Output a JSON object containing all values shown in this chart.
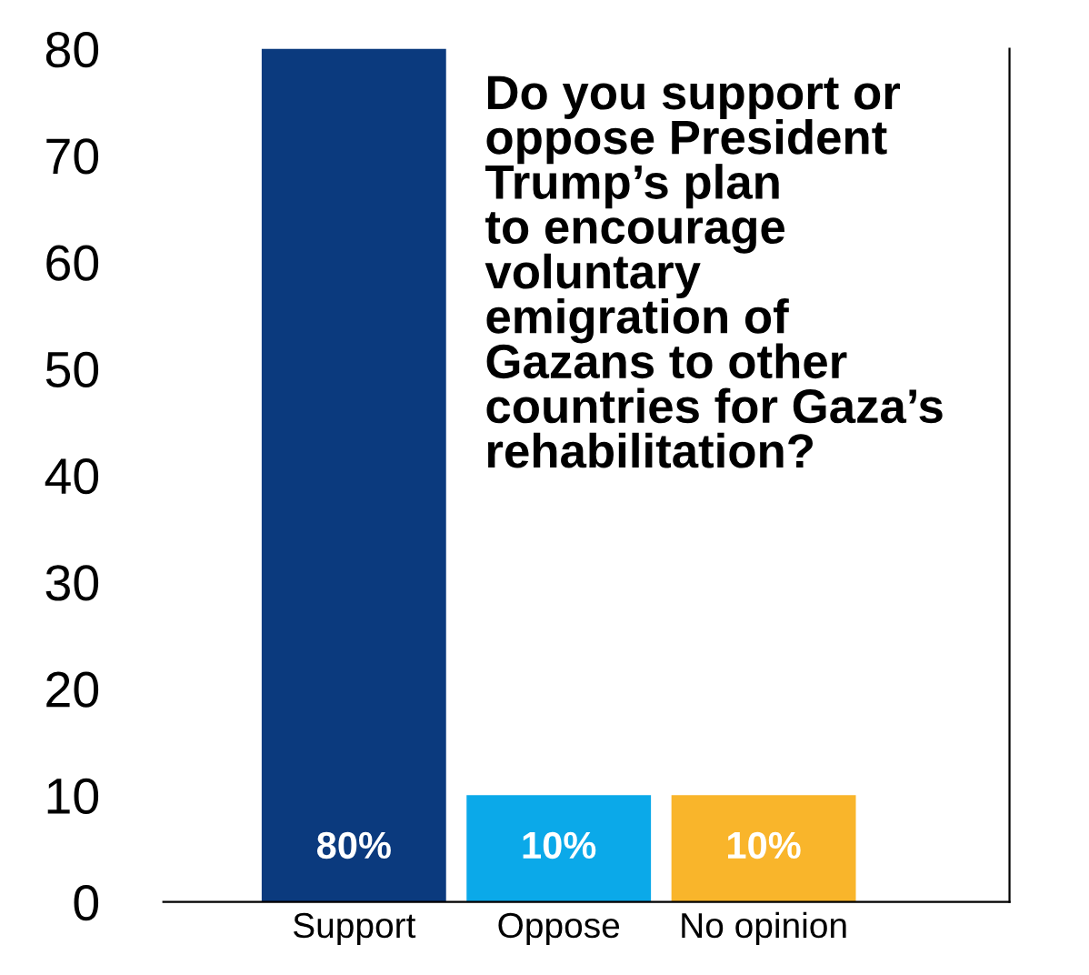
{
  "chart_data": {
    "type": "bar",
    "title": "Do you support or\noppose President\nTrump’s plan\nto encourage\nvoluntary\nemigration of\nGazans to other\ncountries for Gaza’s\nrehabilitation?",
    "categories": [
      "Support",
      "Oppose",
      "No opinion"
    ],
    "values": [
      80,
      10,
      10
    ],
    "colors": [
      "#0b3a7e",
      "#0ba9e9",
      "#f9b52b"
    ],
    "value_labels": [
      "80%",
      "10%",
      "10%"
    ],
    "ylim": [
      0,
      80
    ],
    "yticks": [
      0,
      10,
      20,
      30,
      40,
      50,
      60,
      70,
      80
    ],
    "grid": false,
    "legend": false
  }
}
